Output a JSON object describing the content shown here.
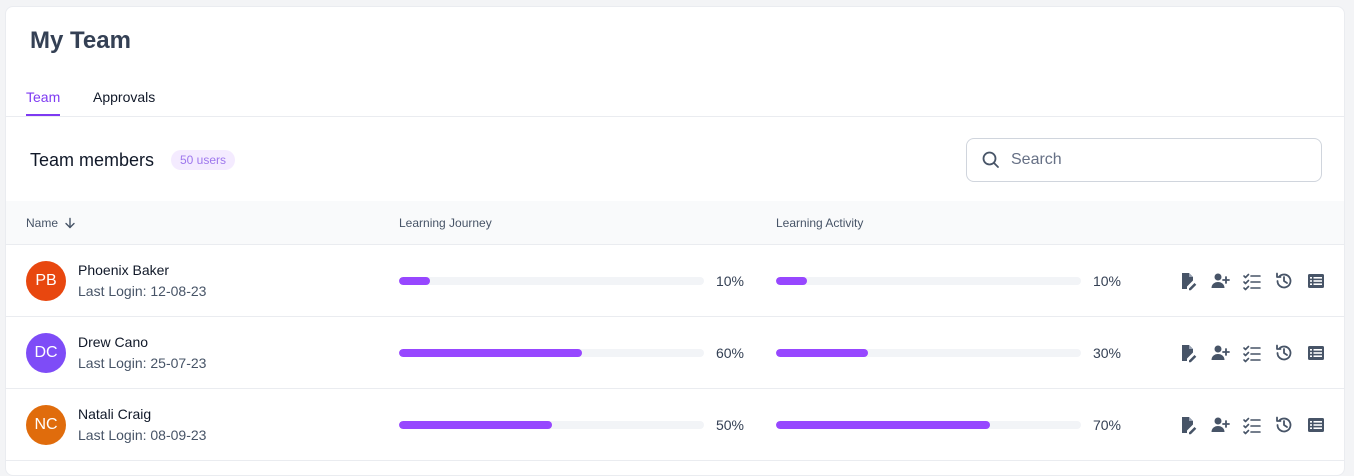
{
  "page": {
    "title": "My Team"
  },
  "tabs": [
    {
      "label": "Team",
      "active": true
    },
    {
      "label": "Approvals",
      "active": false
    }
  ],
  "members_section": {
    "title": "Team members",
    "badge": "50 users",
    "search_placeholder": "Search"
  },
  "table": {
    "columns": {
      "name": "Name",
      "journey": "Learning Journey",
      "activity": "Learning Activity"
    },
    "rows": [
      {
        "initials": "PB",
        "avatar_color": "#e8470f",
        "name": "Phoenix Baker",
        "last_login": "Last Login: 12-08-23",
        "journey": 0.1,
        "journey_label": "10%",
        "activity": 0.1,
        "activity_label": "10%"
      },
      {
        "initials": "DC",
        "avatar_color": "#7e4cf7",
        "name": "Drew Cano",
        "last_login": "Last Login: 25-07-23",
        "journey": 0.6,
        "journey_label": "60%",
        "activity": 0.3,
        "activity_label": "30%"
      },
      {
        "initials": "NC",
        "avatar_color": "#e06c0c",
        "name": "Natali Craig",
        "last_login": "Last Login: 08-09-23",
        "journey": 0.5,
        "journey_label": "50%",
        "activity": 0.7,
        "activity_label": "70%"
      }
    ],
    "row_actions": [
      "edit-document-icon",
      "add-user-icon",
      "checklist-icon",
      "history-icon",
      "list-view-icon"
    ]
  },
  "colors": {
    "accent": "#7e3af2",
    "progress": "#9747ff",
    "icon": "#475467"
  }
}
